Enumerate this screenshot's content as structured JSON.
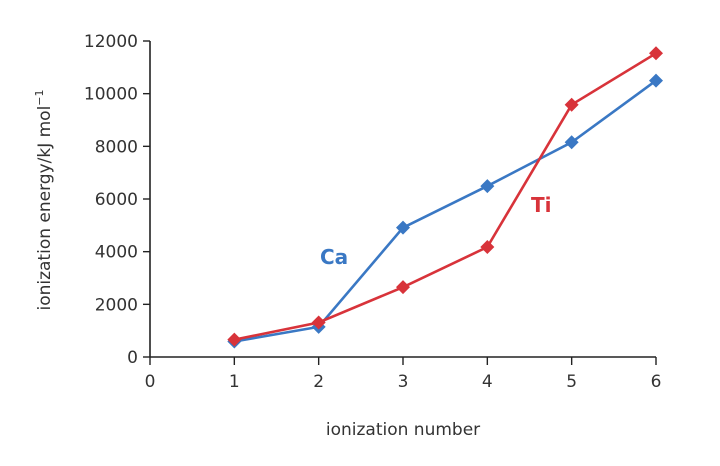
{
  "chart_data": {
    "type": "line",
    "title": "",
    "xlabel": "ionization number",
    "ylabel": "ionization energy/kJ mol",
    "ylabel_superscript": "−1",
    "xlim": [
      0,
      6
    ],
    "ylim": [
      0,
      12000
    ],
    "x_ticks": [
      "0",
      "1",
      "2",
      "3",
      "4",
      "5",
      "6"
    ],
    "y_ticks": [
      "0",
      "2000",
      "4000",
      "6000",
      "8000",
      "10000",
      "12000"
    ],
    "grid": false,
    "x": [
      1,
      2,
      3,
      4,
      5,
      6
    ],
    "series": [
      {
        "name": "Ca",
        "color": "#3a78c4",
        "values": [
          590,
          1145,
          4912,
          6491,
          8153,
          10496
        ]
      },
      {
        "name": "Ti",
        "color": "#d8333a",
        "values": [
          658,
          1310,
          2652,
          4175,
          9581,
          11533
        ]
      }
    ]
  }
}
